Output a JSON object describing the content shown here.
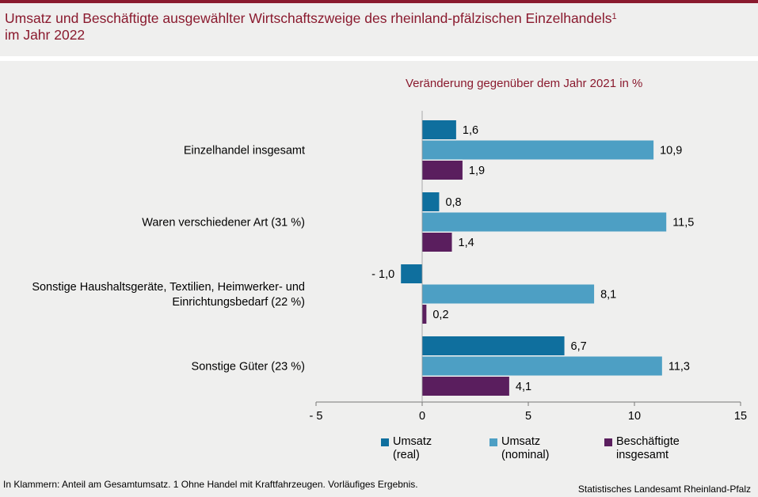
{
  "header": {
    "title_line1": "Umsatz und Beschäftigte ausgewählter Wirtschaftszweige des rheinland-pfälzischen Einzelhandels",
    "title_sup": "1",
    "title_line2": "im Jahr 2022"
  },
  "chart_data": {
    "type": "bar",
    "orientation": "horizontal",
    "title": "Umsatz und Beschäftigte ausgewählter Wirtschaftszweige des rheinland-pfälzischen Einzelhandels¹ im Jahr 2022",
    "subtitle": "Veränderung gegenüber dem Jahr 2021 in %",
    "categories": [
      [
        "Einzelhandel insgesamt"
      ],
      [
        "Waren verschiedener Art (31 %)"
      ],
      [
        "Sonstige Haushaltsgeräte, Textilien, Heimwerker- und",
        "Einrichtungsbedarf (22 %)"
      ],
      [
        "Sonstige Güter (23 %)"
      ]
    ],
    "series": [
      {
        "name": "Umsatz (real)",
        "legend_lines": [
          "Umsatz",
          "(real)"
        ],
        "color": "#0f6f9e",
        "values": [
          1.6,
          0.8,
          -1.0,
          6.7
        ],
        "labels": [
          "1,6",
          "0,8",
          "- 1,0",
          "6,7"
        ]
      },
      {
        "name": "Umsatz (nominal)",
        "legend_lines": [
          "Umsatz",
          "(nominal)"
        ],
        "color": "#4d9fc4",
        "values": [
          10.9,
          11.5,
          8.1,
          11.3
        ],
        "labels": [
          "10,9",
          "11,5",
          "8,1",
          "11,3"
        ]
      },
      {
        "name": "Beschäftigte insgesamt",
        "legend_lines": [
          "Beschäftigte",
          "insgesamt"
        ],
        "color": "#5a1e5e",
        "values": [
          1.9,
          1.4,
          0.2,
          4.1
        ],
        "labels": [
          "1,9",
          "1,4",
          "0,2",
          "4,1"
        ]
      }
    ],
    "xlim": [
      -5,
      15
    ],
    "ticks": [
      -5,
      0,
      5,
      10,
      15
    ],
    "tick_labels": [
      "- 5",
      "0",
      "5",
      "10",
      "15"
    ],
    "grid": false,
    "legend_position": "bottom"
  },
  "footnote": "In Klammern: Anteil am Gesamtumsatz. 1 Ohne Handel mit Kraftfahrzeugen. Vorläufiges Ergebnis.",
  "source": "Statistisches Landesamt Rheinland-Pfalz"
}
